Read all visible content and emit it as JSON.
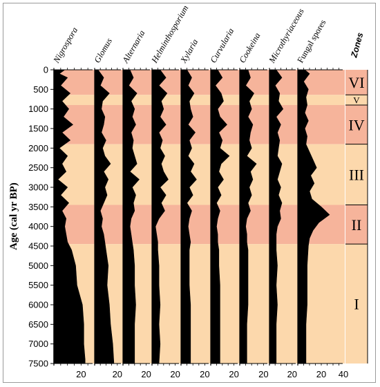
{
  "chart_data": {
    "type": "area",
    "ylabel": "Age (cal yr BP)",
    "y_ticks": [
      0,
      500,
      1000,
      1500,
      2000,
      2500,
      3000,
      3500,
      4000,
      4500,
      5000,
      5500,
      6000,
      6500,
      7000,
      7500
    ],
    "y_tick_labels": [
      "0",
      "500",
      "1000",
      "1500",
      "2000",
      "2500",
      "3000",
      "3500",
      "4000",
      "4500",
      "5000",
      "5500",
      "6000",
      "6500",
      "7000",
      "7500"
    ],
    "ylim": [
      0,
      7500
    ],
    "y_reversed": true,
    "x_tick_label": "20",
    "x_tick_label_last": "40",
    "zones_title": "Zones",
    "zones": [
      {
        "label": "VI",
        "top": 0,
        "bottom": 640,
        "color": "#f6b49b"
      },
      {
        "label": "V",
        "top": 640,
        "bottom": 900,
        "color": "#fcd8ac"
      },
      {
        "label": "IV",
        "top": 900,
        "bottom": 1900,
        "color": "#f6b49b"
      },
      {
        "label": "III",
        "top": 1900,
        "bottom": 3450,
        "color": "#fcd8ac"
      },
      {
        "label": "II",
        "top": 3450,
        "bottom": 4450,
        "color": "#f6b49b"
      },
      {
        "label": "I",
        "top": 4450,
        "bottom": 7500,
        "color": "#fcd8ac"
      }
    ],
    "series": [
      {
        "name": "Nigrospora",
        "italic": true,
        "xmax": 30,
        "depths": [
          0,
          100,
          200,
          400,
          600,
          800,
          1000,
          1200,
          1400,
          1600,
          1800,
          2000,
          2200,
          2400,
          2600,
          2800,
          3000,
          3200,
          3400,
          3600,
          3800,
          4000,
          4200,
          4400,
          4600,
          5000,
          5500,
          6000,
          6500,
          7000,
          7400,
          7500
        ],
        "values": [
          8,
          4,
          10,
          5,
          12,
          6,
          11,
          7,
          14,
          6,
          12,
          4,
          10,
          6,
          9,
          3,
          10,
          5,
          11,
          6,
          9,
          8,
          9,
          10,
          13,
          16,
          17,
          21,
          22,
          22,
          23,
          23
        ]
      },
      {
        "name": "Glomus",
        "italic": true,
        "xmax": 25,
        "depths": [
          0,
          200,
          400,
          600,
          800,
          1000,
          1200,
          1400,
          1600,
          1800,
          2000,
          2200,
          2400,
          2600,
          2800,
          3000,
          3200,
          3400,
          3600,
          3800,
          4000,
          4200,
          4400,
          4600,
          5000,
          5500,
          6000,
          6500,
          7000,
          7500
        ],
        "values": [
          3,
          8,
          5,
          13,
          7,
          6,
          9,
          8,
          6,
          10,
          7,
          9,
          14,
          8,
          12,
          9,
          11,
          8,
          5,
          7,
          6,
          8,
          9,
          10,
          12,
          11,
          13,
          14,
          16,
          17
        ]
      },
      {
        "name": "Alternaria",
        "italic": true,
        "xmax": 25,
        "depths": [
          0,
          200,
          400,
          600,
          800,
          1000,
          1200,
          1400,
          1600,
          1800,
          2000,
          2200,
          2400,
          2600,
          2800,
          3000,
          3200,
          3400,
          3600,
          3800,
          4000,
          4200,
          4400,
          4600,
          5000,
          5500,
          6000,
          6500,
          7000,
          7500
        ],
        "values": [
          6,
          9,
          5,
          12,
          7,
          10,
          8,
          11,
          7,
          9,
          8,
          10,
          12,
          6,
          14,
          8,
          11,
          9,
          10,
          7,
          6,
          7,
          8,
          9,
          10,
          10,
          11,
          10,
          10,
          10
        ]
      },
      {
        "name": "Helminthosporium",
        "italic": true,
        "xmax": 25,
        "depths": [
          0,
          200,
          400,
          600,
          800,
          1000,
          1200,
          1400,
          1600,
          1800,
          2000,
          2200,
          2400,
          2600,
          2800,
          3000,
          3200,
          3400,
          3600,
          3800,
          4000,
          4200,
          4400,
          4600,
          5000,
          5500,
          6000,
          6500,
          7000,
          7500
        ],
        "values": [
          7,
          12,
          6,
          13,
          8,
          10,
          7,
          12,
          6,
          9,
          7,
          11,
          8,
          10,
          14,
          7,
          12,
          8,
          11,
          6,
          3,
          4,
          5,
          5,
          6,
          6,
          7,
          6,
          7,
          6
        ]
      },
      {
        "name": "Xylaria",
        "italic": true,
        "xmax": 25,
        "depths": [
          0,
          200,
          400,
          600,
          800,
          1000,
          1200,
          1400,
          1600,
          1800,
          2000,
          2200,
          2400,
          2600,
          2800,
          3000,
          3200,
          3400,
          3600,
          3800,
          4000,
          4200,
          4400,
          4600,
          5000,
          5500,
          6000,
          6500,
          7000,
          7500
        ],
        "values": [
          5,
          9,
          6,
          11,
          7,
          8,
          10,
          6,
          12,
          7,
          9,
          6,
          11,
          8,
          13,
          7,
          10,
          5,
          9,
          7,
          6,
          7,
          8,
          7,
          7,
          7,
          8,
          8,
          8,
          8
        ]
      },
      {
        "name": "Curvularia",
        "italic": true,
        "xmax": 25,
        "depths": [
          0,
          200,
          400,
          600,
          800,
          1000,
          1200,
          1400,
          1600,
          1800,
          2000,
          2200,
          2400,
          2600,
          2800,
          3000,
          3200,
          3400,
          3600,
          3800,
          4000,
          4200,
          4400,
          4600,
          5000,
          5500,
          6000,
          6500,
          7000,
          7500
        ],
        "values": [
          6,
          10,
          4,
          9,
          11,
          6,
          8,
          14,
          7,
          10,
          8,
          16,
          9,
          7,
          11,
          6,
          9,
          5,
          8,
          6,
          5,
          6,
          6,
          7,
          7,
          8,
          8,
          8,
          8,
          8
        ]
      },
      {
        "name": "Cookeina",
        "italic": true,
        "xmax": 25,
        "depths": [
          0,
          200,
          400,
          600,
          800,
          1000,
          1200,
          1400,
          1600,
          1800,
          2000,
          2200,
          2400,
          2600,
          2800,
          3000,
          3200,
          3400,
          3600,
          3800,
          4000,
          4200,
          4400,
          4600,
          5000,
          5500,
          6000,
          6500,
          7000,
          7500
        ],
        "values": [
          7,
          9,
          5,
          12,
          8,
          10,
          7,
          11,
          9,
          8,
          10,
          6,
          14,
          9,
          11,
          8,
          10,
          7,
          9,
          6,
          5,
          6,
          6,
          7,
          7,
          7,
          7,
          6,
          6,
          6
        ]
      },
      {
        "name": "Microthyriaceous",
        "italic": true,
        "xmax": 25,
        "depths": [
          0,
          200,
          400,
          600,
          800,
          1000,
          1200,
          1400,
          1600,
          1800,
          2000,
          2200,
          2400,
          2600,
          2800,
          3000,
          3200,
          3400,
          3600,
          3800,
          4000,
          4200,
          4400,
          4600,
          5000,
          5500,
          6000,
          6500,
          7000,
          7500
        ],
        "values": [
          6,
          11,
          5,
          9,
          8,
          12,
          6,
          10,
          7,
          9,
          8,
          7,
          11,
          9,
          7,
          10,
          8,
          11,
          9,
          10,
          7,
          6,
          6,
          6,
          7,
          6,
          7,
          6,
          6,
          6
        ]
      },
      {
        "name": "Fungal spores",
        "italic": false,
        "xmax": 40,
        "depths": [
          0,
          100,
          300,
          500,
          700,
          900,
          1100,
          1300,
          1500,
          1700,
          1900,
          2100,
          2300,
          2500,
          2700,
          2900,
          3100,
          3300,
          3500,
          3700,
          3900,
          4100,
          4300,
          4500,
          5000,
          5500,
          6000,
          6500,
          7000,
          7500
        ],
        "values": [
          6,
          10,
          5,
          9,
          7,
          8,
          6,
          9,
          6,
          8,
          7,
          10,
          13,
          16,
          11,
          14,
          10,
          12,
          20,
          27,
          18,
          13,
          10,
          9,
          8,
          8,
          8,
          7,
          7,
          7
        ]
      }
    ]
  }
}
